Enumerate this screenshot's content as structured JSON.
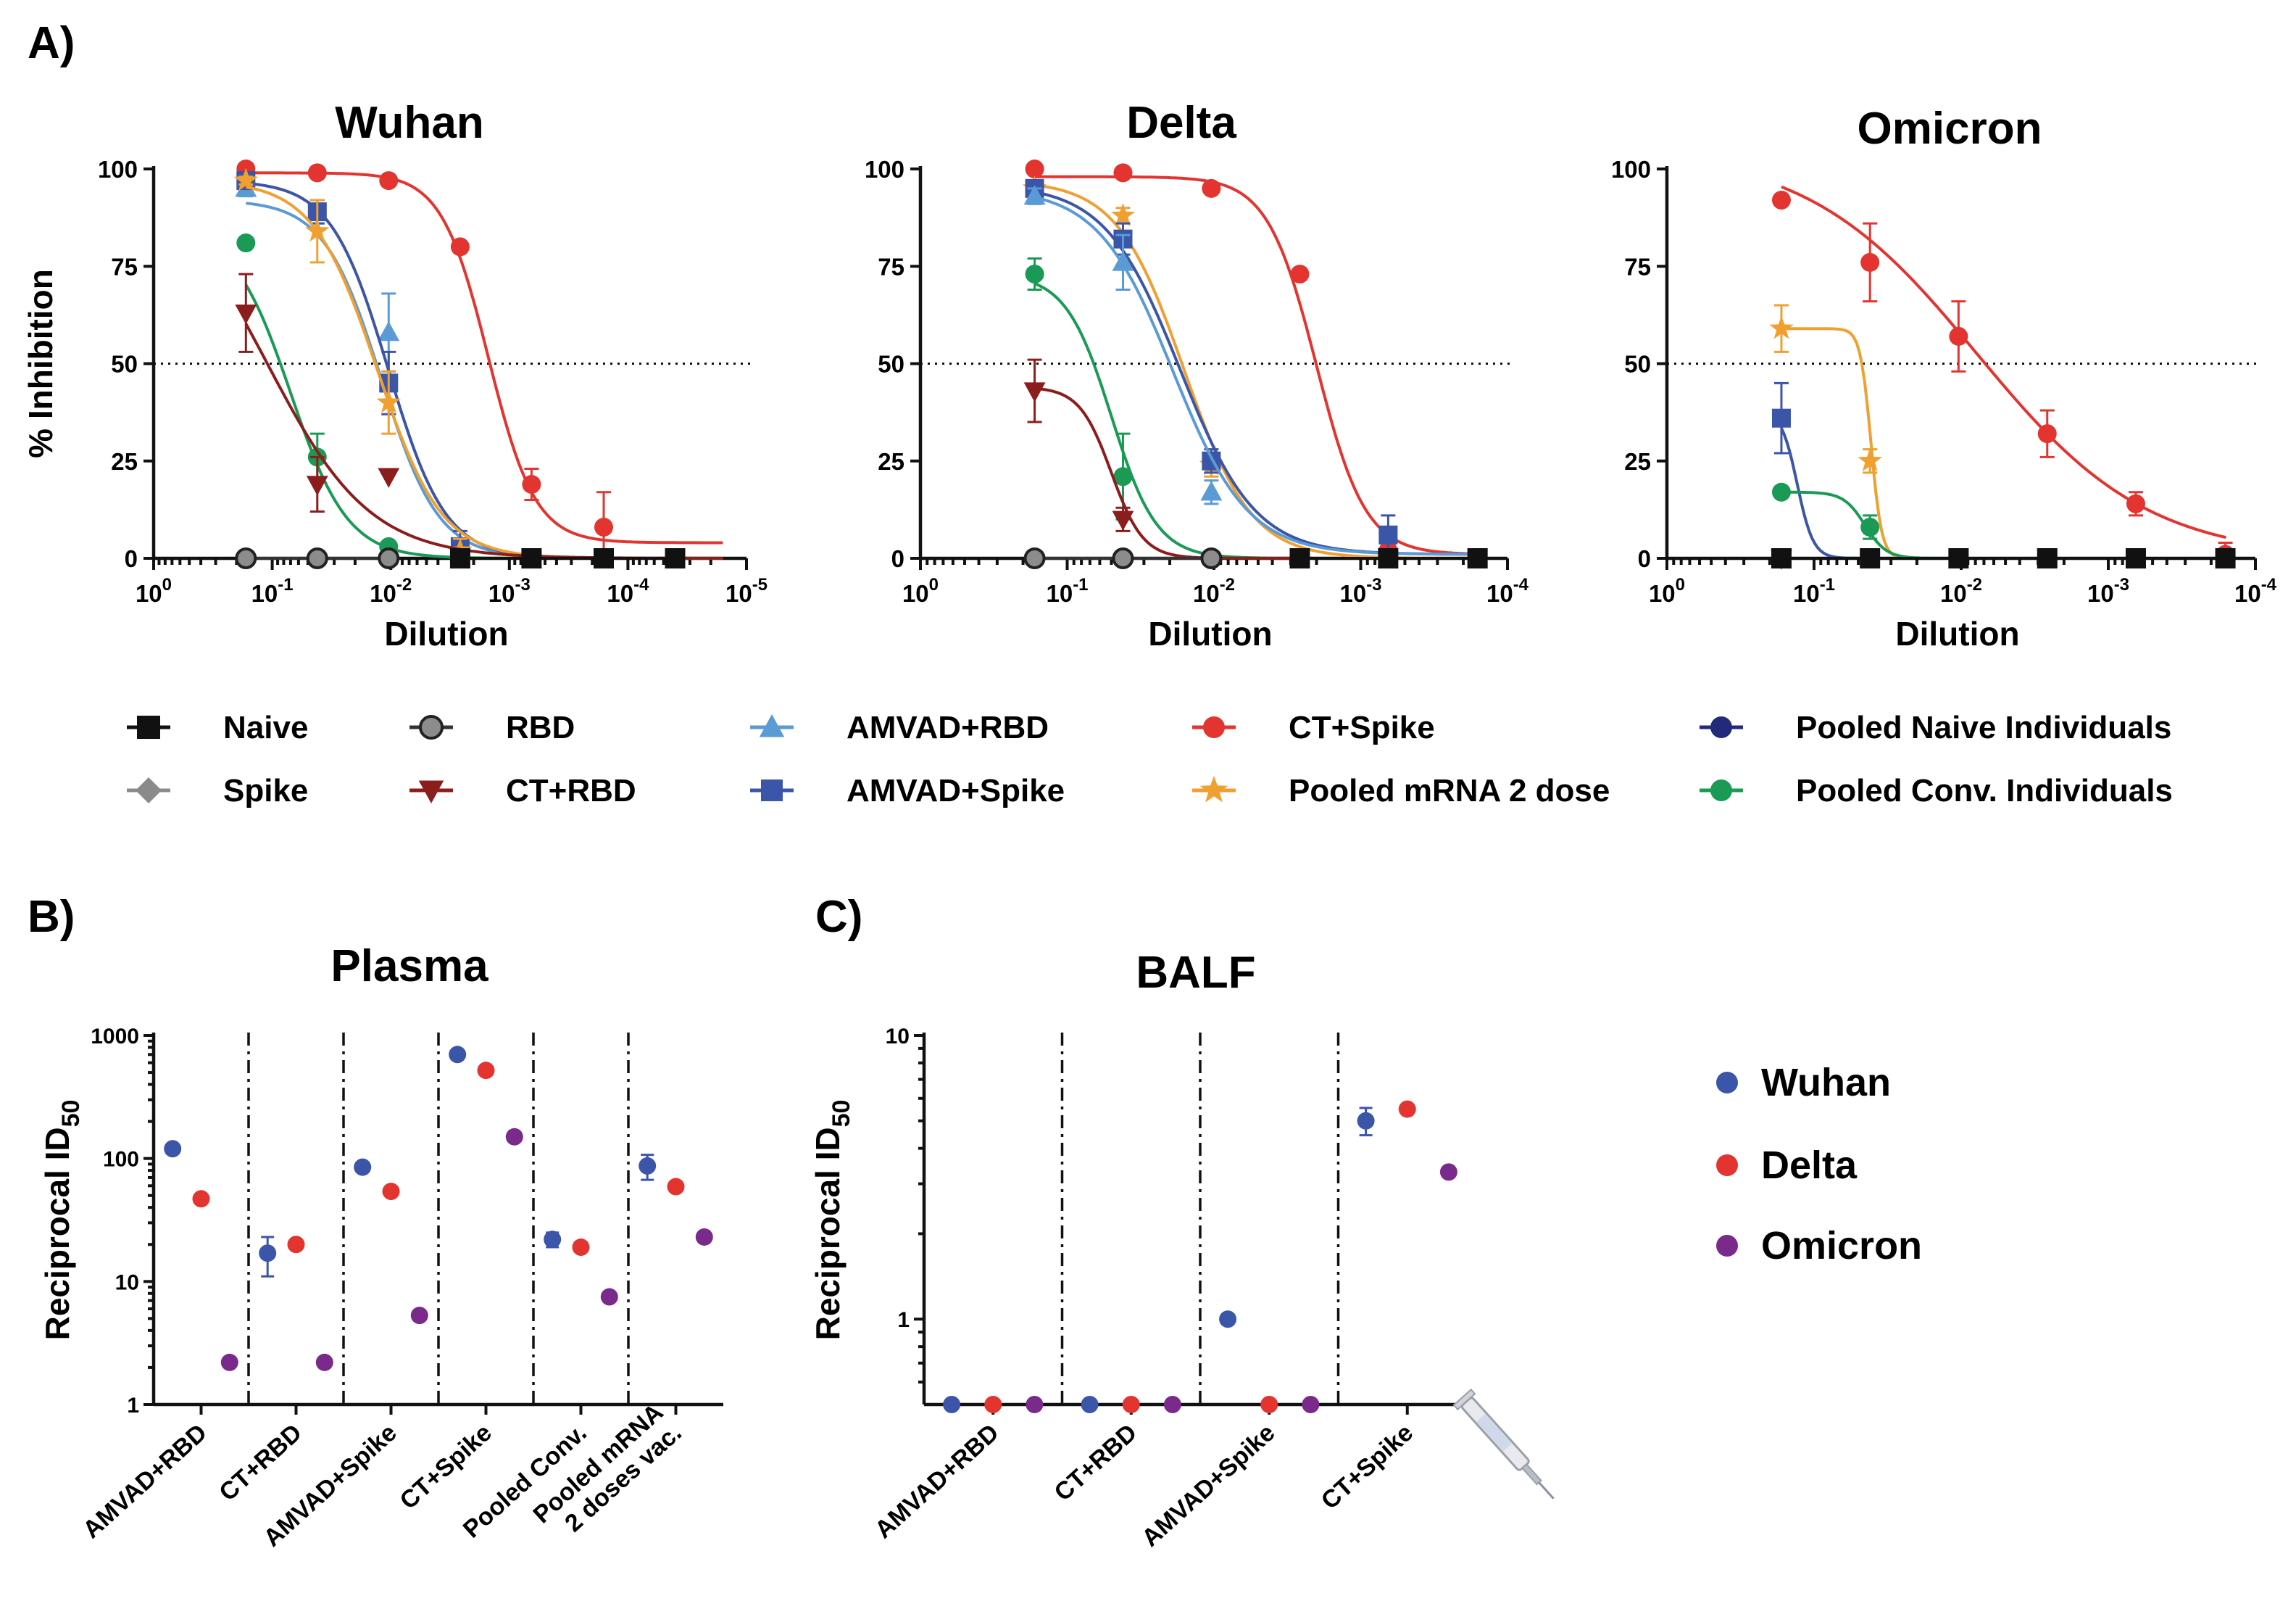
{
  "panel_labels": {
    "a": "A)",
    "b": "B)",
    "c": "C)"
  },
  "colors": {
    "naive": "#111111",
    "spike": "#8a8a8a",
    "rbd": "#888888",
    "ct_rbd": "#8b1d1d",
    "amvad_rbd": "#5b9bd5",
    "amvad_spike": "#3b55a8",
    "ct_spike": "#e3342f",
    "mrna": "#f0a030",
    "naive_ind": "#232a7a",
    "conv": "#1a9a55",
    "wuhan": "#3b55a8",
    "delta": "#e3342f",
    "omicron": "#7a2a8a"
  },
  "legend": [
    {
      "key": "naive",
      "label": "Naive",
      "marker": "square"
    },
    {
      "key": "rbd",
      "label": "RBD",
      "marker": "circle-gray"
    },
    {
      "key": "amvad_rbd",
      "label": "AMVAD+RBD",
      "marker": "triangle"
    },
    {
      "key": "ct_spike",
      "label": "CT+Spike",
      "marker": "circle"
    },
    {
      "key": "naive_ind",
      "label": "Pooled Naive  Individuals",
      "marker": "circle"
    },
    {
      "key": "spike",
      "label": "Spike",
      "marker": "diamond"
    },
    {
      "key": "ct_rbd",
      "label": "CT+RBD",
      "marker": "triangle-down"
    },
    {
      "key": "amvad_spike",
      "label": "AMVAD+Spike",
      "marker": "square"
    },
    {
      "key": "mrna",
      "label": "Pooled mRNA 2 dose",
      "marker": "star"
    },
    {
      "key": "conv",
      "label": "Pooled Conv. Individuals",
      "marker": "circle"
    }
  ],
  "balf_legend": [
    {
      "key": "wuhan",
      "label": "Wuhan"
    },
    {
      "key": "delta",
      "label": "Delta"
    },
    {
      "key": "omicron",
      "label": "Omicron"
    }
  ],
  "chart_data": [
    {
      "type": "line",
      "id": "wuhan",
      "title": "Wuhan",
      "xlabel": "Dilution",
      "ylabel": "% Inhibition",
      "xscale": "log-reversed",
      "xlim": [
        1,
        1e-05
      ],
      "ylim": [
        0,
        100
      ],
      "yticks": [
        "0",
        "25",
        "50",
        "75",
        "100"
      ],
      "xticks": [
        "0",
        "-1",
        "-2",
        "-3",
        "-4",
        "-5"
      ],
      "reference_line": 50,
      "series": [
        {
          "key": "ct_spike",
          "x": [
            0.16667,
            0.04167,
            0.01042,
            0.0026,
            0.00065,
            0.00016
          ],
          "y": [
            100,
            99,
            97,
            80,
            19,
            8
          ],
          "err": [
            0,
            0,
            0,
            0,
            4,
            9
          ],
          "ec50": 0.0015,
          "top": 99,
          "bottom": 4,
          "hill": 2.2
        },
        {
          "key": "amvad_rbd",
          "x": [
            0.16667,
            0.04167,
            0.01042,
            0.0026
          ],
          "y": [
            95,
            89,
            58,
            2
          ],
          "err": [
            2,
            3,
            10,
            3
          ],
          "ec50": 0.012,
          "top": 92,
          "bottom": 0,
          "hill": 1.8
        },
        {
          "key": "amvad_spike",
          "x": [
            0.16667,
            0.04167,
            0.01042,
            0.0026,
            0.00065,
            0.00016,
            4e-05
          ],
          "y": [
            97,
            89,
            45,
            3,
            0,
            0,
            0
          ],
          "err": [
            1,
            3,
            8,
            4,
            0,
            0,
            0
          ],
          "ec50": 0.0105,
          "top": 97,
          "bottom": 0,
          "hill": 1.8
        },
        {
          "key": "mrna",
          "x": [
            0.16667,
            0.04167,
            0.01042,
            0.0026
          ],
          "y": [
            97,
            84,
            40,
            2
          ],
          "err": [
            1,
            8,
            8,
            3
          ],
          "ec50": 0.013,
          "top": 97,
          "bottom": 0,
          "hill": 1.6
        },
        {
          "key": "conv",
          "x": [
            0.16667,
            0.04167,
            0.01042,
            0.0026,
            0.00065,
            0.00016,
            4e-05
          ],
          "y": [
            81,
            26,
            3,
            0,
            0,
            0,
            0
          ],
          "err": [
            0,
            6,
            1,
            0,
            0,
            0,
            0
          ],
          "ec50": 0.07,
          "top": 85,
          "bottom": 0,
          "hill": 1.8
        },
        {
          "key": "ct_rbd",
          "x": [
            0.16667,
            0.04167,
            0.01042
          ],
          "y": [
            63,
            19,
            21
          ],
          "err": [
            10,
            7,
            0
          ],
          "ec50": 0.11,
          "top": 100,
          "bottom": 0,
          "hill": 1.0
        },
        {
          "key": "rbd",
          "x": [
            0.16667,
            0.04167,
            0.01042
          ],
          "y": [
            0,
            0,
            0
          ],
          "err": [
            0,
            0,
            0
          ],
          "flat": true
        },
        {
          "key": "naive",
          "x": [
            0.0026,
            0.00065,
            0.00016,
            4e-05
          ],
          "y": [
            0,
            0,
            0,
            0
          ],
          "err": [
            0,
            0,
            0,
            0
          ],
          "flat": true
        }
      ]
    },
    {
      "type": "line",
      "id": "delta",
      "title": "Delta",
      "xlabel": "Dilution",
      "ylabel": "",
      "xscale": "log-reversed",
      "xlim": [
        1,
        0.0001
      ],
      "ylim": [
        0,
        100
      ],
      "yticks": [
        "0",
        "25",
        "50",
        "75",
        "100"
      ],
      "xticks": [
        "0",
        "-1",
        "-2",
        "-3",
        "-4"
      ],
      "reference_line": 50,
      "series": [
        {
          "key": "ct_spike",
          "x": [
            0.16667,
            0.04167,
            0.01042,
            0.0026,
            0.00065
          ],
          "y": [
            100,
            99,
            95,
            73,
            2
          ],
          "err": [
            0,
            0,
            0,
            0,
            2
          ],
          "ec50": 0.002,
          "top": 98,
          "bottom": 1,
          "hill": 2.6
        },
        {
          "key": "mrna",
          "x": [
            0.16667,
            0.04167,
            0.01042
          ],
          "y": [
            95,
            88,
            24
          ],
          "err": [
            1,
            2,
            3
          ],
          "ec50": 0.016,
          "top": 97,
          "bottom": 0,
          "hill": 1.9
        },
        {
          "key": "amvad_spike",
          "x": [
            0.16667,
            0.04167,
            0.01042,
            0.0026,
            0.00065,
            0.00016
          ],
          "y": [
            95,
            82,
            25,
            0,
            6,
            0
          ],
          "err": [
            1,
            4,
            3,
            0,
            5,
            0
          ],
          "ec50": 0.017,
          "top": 96,
          "bottom": 1,
          "hill": 1.7
        },
        {
          "key": "amvad_rbd",
          "x": [
            0.16667,
            0.04167,
            0.01042
          ],
          "y": [
            93,
            76,
            17
          ],
          "err": [
            2,
            7,
            3
          ],
          "ec50": 0.019,
          "top": 95,
          "bottom": 1,
          "hill": 1.7
        },
        {
          "key": "conv",
          "x": [
            0.16667,
            0.04167
          ],
          "y": [
            73,
            21
          ],
          "err": [
            4,
            11
          ],
          "ec50": 0.05,
          "top": 73,
          "bottom": 0,
          "hill": 2.8
        },
        {
          "key": "ct_rbd",
          "x": [
            0.16667,
            0.04167
          ],
          "y": [
            43,
            10
          ],
          "err": [
            8,
            3
          ],
          "ec50": 0.05,
          "top": 44,
          "bottom": 0,
          "hill": 4.0
        },
        {
          "key": "rbd",
          "x": [
            0.16667,
            0.04167,
            0.01042
          ],
          "y": [
            0,
            0,
            0
          ],
          "err": [
            0,
            0,
            0
          ],
          "flat": true
        },
        {
          "key": "naive",
          "x": [
            0.0026,
            0.00065,
            0.00016
          ],
          "y": [
            0,
            0,
            0
          ],
          "err": [
            0,
            0,
            0
          ],
          "flat": true
        }
      ]
    },
    {
      "type": "line",
      "id": "omicron",
      "title": "Omicron",
      "xlabel": "Dilution",
      "ylabel": "",
      "xscale": "log-reversed",
      "xlim": [
        1,
        0.0001
      ],
      "ylim": [
        0,
        100
      ],
      "yticks": [
        "0",
        "25",
        "50",
        "75",
        "100"
      ],
      "xticks": [
        "0",
        "-1",
        "-2",
        "-3",
        "-4"
      ],
      "reference_line": 50,
      "series": [
        {
          "key": "ct_spike",
          "x": [
            0.16667,
            0.04167,
            0.01042,
            0.0026,
            0.00065,
            0.00016
          ],
          "y": [
            92,
            76,
            57,
            32,
            14,
            1
          ],
          "err": [
            0,
            10,
            9,
            6,
            3,
            3
          ],
          "ec50": 0.0078,
          "top": 105,
          "bottom": 0,
          "hill": 0.75
        },
        {
          "key": "mrna",
          "x": [
            0.16667,
            0.04167
          ],
          "y": [
            59,
            25
          ],
          "err": [
            6,
            3
          ],
          "ec50": 0.041,
          "top": 59,
          "bottom": 0,
          "hill": 12
        },
        {
          "key": "amvad_spike",
          "x": [
            0.16667,
            0.04167,
            0.01042,
            0.0026,
            0.00065
          ],
          "y": [
            36,
            0,
            0,
            0,
            0
          ],
          "err": [
            9,
            0,
            0,
            0,
            0
          ],
          "ec50": 0.13,
          "top": 38,
          "bottom": 0,
          "hill": 8
        },
        {
          "key": "conv",
          "x": [
            0.16667,
            0.04167
          ],
          "y": [
            17,
            8
          ],
          "err": [
            0,
            3
          ],
          "ec50": 0.045,
          "top": 17,
          "bottom": 0,
          "hill": 6
        },
        {
          "key": "ct_rbd",
          "x": [
            0.16667
          ],
          "y": [
            0
          ],
          "err": [
            0
          ],
          "flat": true
        },
        {
          "key": "naive",
          "x": [
            0.16667,
            0.04167,
            0.01042,
            0.0026,
            0.00065,
            0.00016
          ],
          "y": [
            0,
            0,
            0,
            0,
            0,
            0
          ],
          "err": [
            0,
            0,
            0,
            0,
            0,
            0
          ],
          "flat": true
        }
      ]
    },
    {
      "type": "scatter",
      "id": "plasma",
      "title": "Plasma",
      "ylabel": "Reciprocal ID",
      "ylabel_sub": "50",
      "yscale": "log",
      "ylim": [
        1,
        1000
      ],
      "yticks": [
        "1",
        "10",
        "100",
        "1000"
      ],
      "categories": [
        "AMVAD+RBD",
        "CT+RBD",
        "AMVAD+Spike",
        "CT+Spike",
        "Pooled  Conv.",
        "Pooled mRNA\n2 doses vac."
      ],
      "series": [
        {
          "key": "wuhan",
          "name": "Wuhan",
          "values": [
            120,
            17,
            85,
            700,
            22,
            87
          ],
          "err": [
            0,
            6,
            0,
            0,
            3,
            20
          ]
        },
        {
          "key": "delta",
          "name": "Delta",
          "values": [
            47,
            20,
            54,
            520,
            19,
            59
          ],
          "err": [
            0,
            0,
            0,
            0,
            0,
            0
          ]
        },
        {
          "key": "omicron",
          "name": "Omicron",
          "values": [
            2.2,
            2.2,
            5.3,
            150,
            7.5,
            23
          ],
          "err": [
            0,
            0,
            0,
            0,
            0,
            0
          ]
        }
      ]
    },
    {
      "type": "scatter",
      "id": "balf",
      "title": "BALF",
      "ylabel": "Reciprocal ID",
      "ylabel_sub": "50",
      "yscale": "log",
      "ylim": [
        0.5,
        10
      ],
      "yticks": [
        "1",
        "10"
      ],
      "categories": [
        "AMVAD+RBD",
        "CT+RBD",
        "AMVAD+Spike",
        "CT+Spike"
      ],
      "series": [
        {
          "key": "wuhan",
          "name": "Wuhan",
          "values": [
            0.5,
            0.5,
            1.0,
            5.0
          ],
          "err": [
            0,
            0,
            0.04,
            0.55
          ]
        },
        {
          "key": "delta",
          "name": "Delta",
          "values": [
            0.5,
            0.5,
            0.5,
            5.5
          ],
          "err": [
            0,
            0,
            0,
            0.2
          ]
        },
        {
          "key": "omicron",
          "name": "Omicron",
          "values": [
            0.5,
            0.5,
            0.5,
            3.3
          ],
          "err": [
            0,
            0,
            0,
            0
          ]
        }
      ]
    }
  ]
}
